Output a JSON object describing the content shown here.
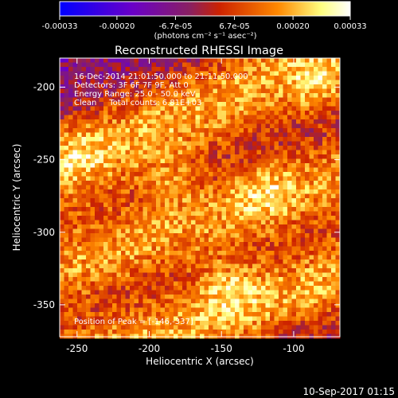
{
  "colorbar": {
    "ticks": [
      "-0.00033",
      "-0.00020",
      "-6.7e-05",
      "6.7e-05",
      "0.00020",
      "0.00033"
    ],
    "tick_values": [
      -0.00033,
      -0.0002,
      -6.7e-05,
      6.7e-05,
      0.0002,
      0.00033
    ],
    "range": [
      -0.00033,
      0.00033
    ],
    "unit_label": "(photons cm⁻² s⁻¹ asec⁻²)",
    "colors": [
      "#0000ff",
      "#6a00c8",
      "#8a2060",
      "#cc2200",
      "#ff8800",
      "#ffff80",
      "#ffffff"
    ]
  },
  "plot": {
    "title": "Reconstructed RHESSI Image",
    "xlabel": "Heliocentric X (arcsec)",
    "ylabel": "Heliocentric Y (arcsec)",
    "info_lines": [
      "16-Dec-2014 21:01:50.000 to 21:11:50.000",
      "Detectors: 3F 6F 7F 9F, Att 0",
      "Energy Range: 25.0 - 50.0 keV",
      "Clean     Total counts: 6.81E+03"
    ],
    "peak_label": "Position of Peak = [-146,-337]"
  },
  "footer": {
    "timestamp": "10-Sep-2017 01:15"
  },
  "chart_data": {
    "type": "heatmap",
    "title": "Reconstructed RHESSI Image",
    "xlabel": "Heliocentric X (arcsec)",
    "ylabel": "Heliocentric Y (arcsec)",
    "xlim": [
      -262,
      -68
    ],
    "ylim": [
      -372,
      -180
    ],
    "x_ticks": [
      -250,
      -200,
      -150,
      -100
    ],
    "y_ticks": [
      -200,
      -250,
      -300,
      -350
    ],
    "x_tick_labels": [
      "-250",
      "-200",
      "-150",
      "-100"
    ],
    "y_tick_labels": [
      "-200",
      "-250",
      "-300",
      "-350"
    ],
    "peak": [
      -146,
      -337
    ],
    "bright_bands": [
      {
        "from": [
          -262,
          -255
        ],
        "to": [
          -68,
          -175
        ],
        "half_width": 24,
        "peak_value": 0.00033
      },
      {
        "from": [
          -262,
          -325
        ],
        "to": [
          -68,
          -260
        ],
        "half_width": 22,
        "peak_value": 0.0003
      },
      {
        "from": [
          -262,
          -395
        ],
        "to": [
          -68,
          -330
        ],
        "half_width": 22,
        "peak_value": 0.00033
      }
    ],
    "hotspots": [
      {
        "x": -146,
        "y": -337,
        "value": 0.00033
      },
      {
        "x": -120,
        "y": -272,
        "value": 0.0003
      },
      {
        "x": -185,
        "y": -262,
        "value": 0.00025
      },
      {
        "x": -82,
        "y": -200,
        "value": 0.0003
      },
      {
        "x": -250,
        "y": -245,
        "value": 0.00022
      }
    ]
  }
}
